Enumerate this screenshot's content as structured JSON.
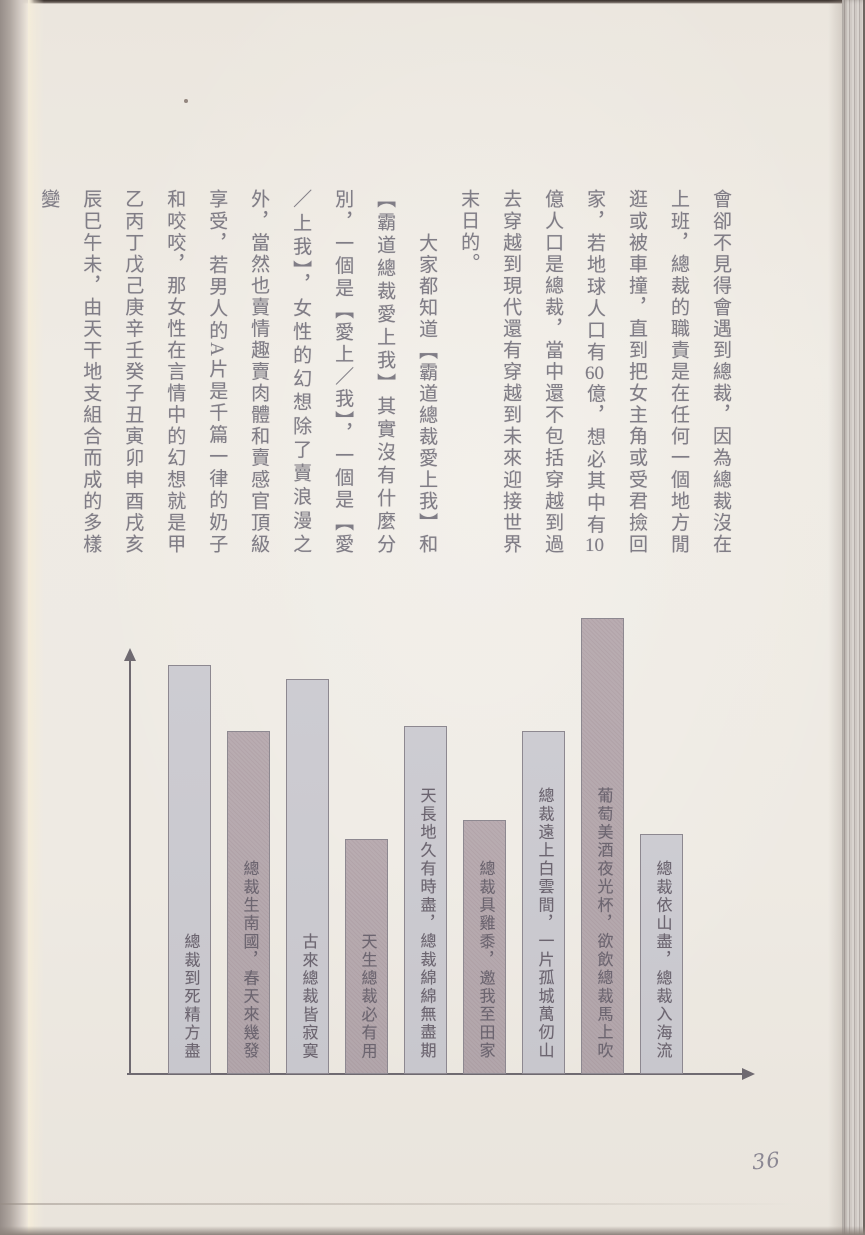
{
  "page": {
    "number": "36"
  },
  "body": {
    "paragraphs": [
      "會卻不見得會遇到總裁，因為總裁沒在上班，總裁的職責是在任何一個地方閒逛或被車撞，直到把女主角或受君撿回家，若地球人口有60億，想必其中有10億人口是總裁，當中還不包括穿越到過去穿越到現代還有穿越到未來迎接世界末日的。",
      "大家都知道【霸道總裁愛上我】和【霸道總裁愛上我】其實沒有什麼分別，一個是【愛上／我】，一個是【愛／上我】，女性的幻想除了賣浪漫之外，當然也賣情趣賣肉體和賣感官頂級享受，若男人的A片是千篇一律的奶子和咬咬，那女性在言情中的幻想就是甲乙丙丁戊己庚辛壬癸子丑寅卯申酉戌亥辰巳午未，由天干地支組合而成的多樣變"
    ]
  },
  "chart_data": {
    "type": "bar",
    "orientation": "vertical-bars-with-internal-vertical-labels",
    "title": "",
    "xlabel": "",
    "ylabel": "",
    "axis_style": "plain arrows, no ticks, no gridlines",
    "legend": "none",
    "ylim": [
      0,
      100
    ],
    "categories": [
      "總裁到死精方盡",
      "總裁生南國，春天來幾發",
      "古來總裁皆寂寞",
      "天生總裁必有用",
      "天長地久有時盡，總裁綿綿無盡期",
      "總裁具雞黍，邀我至田家",
      "總裁遠上白雲間，一片孤城萬仞山",
      "葡萄美酒夜光杯，欲飲總裁馬上吹",
      "總裁依山盡，總裁入海流"
    ],
    "values": [
      87,
      73,
      84,
      50,
      74,
      54,
      73,
      97,
      51
    ],
    "bar_tones": [
      "light",
      "dark",
      "light",
      "dark",
      "light",
      "dark",
      "light",
      "dark",
      "light"
    ],
    "colors": {
      "bar_light": "#cbcacf",
      "bar_dark": "#b6a9ae",
      "bar_border": "#8d8890",
      "label_text": "#6c6570",
      "axis": "#6f6a71"
    }
  },
  "colors": {
    "paper": "#ede9e2",
    "body_text": "#807d86",
    "page_number": "#8b8793"
  }
}
